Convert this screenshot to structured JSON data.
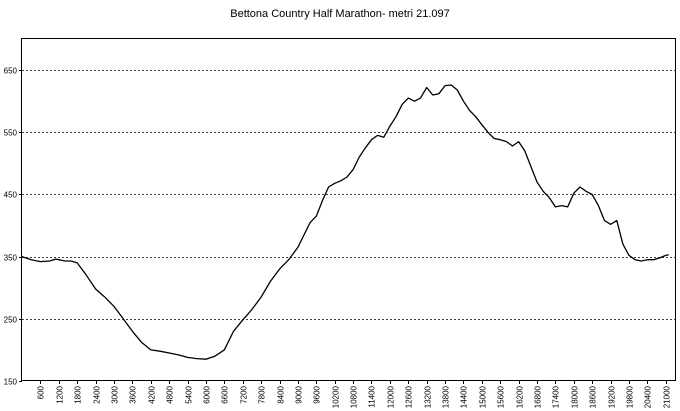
{
  "chart_data": {
    "type": "line",
    "title": "Bettona Country Half Marathon- metri 21.097",
    "xlabel": "",
    "ylabel": "",
    "xlim": [
      0,
      21300
    ],
    "ylim": [
      150,
      700
    ],
    "yticks": [
      150,
      250,
      350,
      450,
      550,
      650
    ],
    "xticks": [
      600,
      1200,
      1800,
      2400,
      3000,
      3600,
      4200,
      4800,
      5400,
      6000,
      6600,
      7200,
      7800,
      8400,
      9000,
      9600,
      10200,
      10800,
      11400,
      12000,
      12600,
      13200,
      13800,
      14400,
      15000,
      15600,
      16200,
      16800,
      17400,
      18000,
      18600,
      19200,
      19800,
      20400,
      21000
    ],
    "grid": "horizontal-dashed",
    "series": [
      {
        "color": "#000000",
        "x": [
          0,
          300,
          600,
          900,
          1100,
          1200,
          1400,
          1600,
          1800,
          2100,
          2400,
          2700,
          3000,
          3300,
          3600,
          3900,
          4200,
          4500,
          4800,
          5100,
          5400,
          5700,
          6000,
          6300,
          6600,
          6900,
          7200,
          7500,
          7800,
          8100,
          8400,
          8700,
          9000,
          9200,
          9400,
          9600,
          9800,
          10000,
          10200,
          10400,
          10600,
          10800,
          11000,
          11200,
          11400,
          11600,
          11800,
          12000,
          12200,
          12400,
          12600,
          12800,
          13000,
          13200,
          13400,
          13600,
          13800,
          14000,
          14200,
          14400,
          14600,
          14800,
          15000,
          15200,
          15400,
          15600,
          15800,
          16000,
          16200,
          16400,
          16600,
          16800,
          17000,
          17200,
          17400,
          17600,
          17800,
          18000,
          18200,
          18400,
          18600,
          18800,
          19000,
          19200,
          19400,
          19600,
          19800,
          20000,
          20200,
          20400,
          20600,
          20800,
          21000,
          21097
        ],
        "y": [
          350,
          345,
          342,
          343,
          346,
          345,
          343,
          343,
          340,
          320,
          298,
          285,
          270,
          250,
          230,
          212,
          200,
          198,
          195,
          192,
          188,
          186,
          185,
          190,
          200,
          230,
          248,
          265,
          285,
          310,
          330,
          345,
          365,
          385,
          405,
          415,
          440,
          462,
          468,
          472,
          478,
          490,
          510,
          525,
          538,
          545,
          542,
          560,
          575,
          595,
          605,
          600,
          605,
          622,
          610,
          612,
          625,
          626,
          618,
          600,
          585,
          575,
          562,
          550,
          540,
          538,
          535,
          528,
          535,
          520,
          495,
          470,
          455,
          445,
          430,
          432,
          430,
          452,
          462,
          455,
          450,
          432,
          408,
          402,
          408,
          370,
          352,
          345,
          343,
          345,
          345,
          348,
          352,
          353
        ]
      }
    ]
  }
}
